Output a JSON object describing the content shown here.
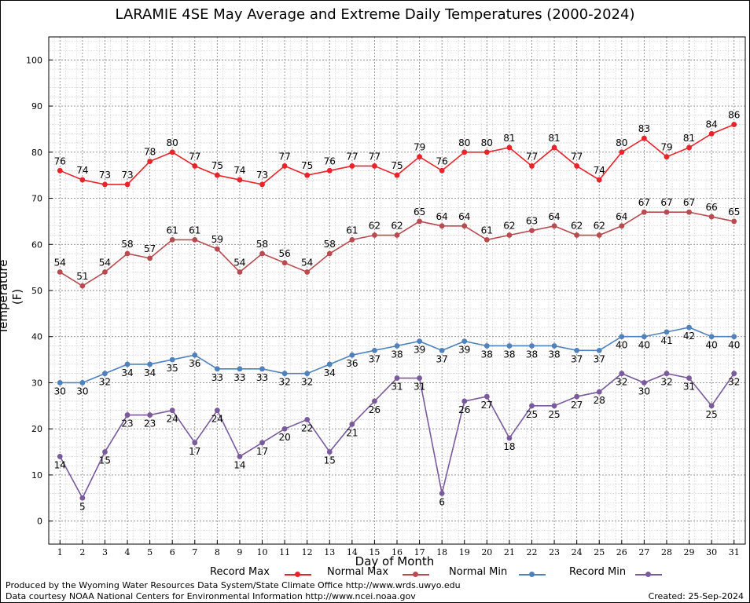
{
  "chart_data": {
    "type": "line",
    "title": "LARAMIE 4SE May Average and Extreme Daily Temperatures (2000-2024)",
    "xlabel": "Day of Month",
    "ylabel": "Temperature (F)",
    "x": [
      1,
      2,
      3,
      4,
      5,
      6,
      7,
      8,
      9,
      10,
      11,
      12,
      13,
      14,
      15,
      16,
      17,
      18,
      19,
      20,
      21,
      22,
      23,
      24,
      25,
      26,
      27,
      28,
      29,
      30,
      31
    ],
    "ylim": [
      -5,
      105
    ],
    "yticks": [
      0,
      10,
      20,
      30,
      40,
      50,
      60,
      70,
      80,
      90,
      100
    ],
    "grid": true,
    "legend_position": "bottom",
    "series": [
      {
        "name": "Record Max",
        "color": "#e8232a",
        "label_position": "above",
        "values": [
          76,
          74,
          73,
          73,
          78,
          80,
          77,
          75,
          74,
          73,
          77,
          75,
          76,
          77,
          77,
          75,
          79,
          76,
          80,
          80,
          81,
          77,
          81,
          77,
          74,
          80,
          83,
          79,
          81,
          84,
          86
        ]
      },
      {
        "name": "Normal Max",
        "color": "#b94a4f",
        "label_position": "above",
        "values": [
          54,
          51,
          54,
          58,
          57,
          61,
          61,
          59,
          54,
          58,
          56,
          54,
          58,
          61,
          62,
          62,
          65,
          64,
          64,
          61,
          62,
          63,
          64,
          62,
          62,
          64,
          67,
          67,
          67,
          66,
          65
        ]
      },
      {
        "name": "Normal Min",
        "color": "#4f81bd",
        "label_position": "below",
        "values": [
          30,
          30,
          32,
          34,
          34,
          35,
          36,
          33,
          33,
          33,
          32,
          32,
          34,
          36,
          37,
          38,
          39,
          37,
          39,
          38,
          38,
          38,
          38,
          37,
          37,
          40,
          40,
          41,
          42,
          40,
          40
        ]
      },
      {
        "name": "Record Min",
        "color": "#7a5a9c",
        "label_position": "below",
        "values": [
          14,
          5,
          15,
          23,
          23,
          24,
          17,
          24,
          14,
          17,
          20,
          22,
          15,
          21,
          26,
          31,
          31,
          6,
          26,
          27,
          18,
          25,
          25,
          27,
          28,
          32,
          30,
          32,
          31,
          25,
          32
        ]
      }
    ]
  },
  "footer": {
    "credit_line1": "Produced by the Wyoming Water Resources Data System/State Climate Office http://www.wrds.uwyo.edu",
    "credit_line2": "Data courtesy NOAA National Centers for Environmental Information http://www.ncei.noaa.gov",
    "created": "Created:  25-Sep-2024"
  }
}
